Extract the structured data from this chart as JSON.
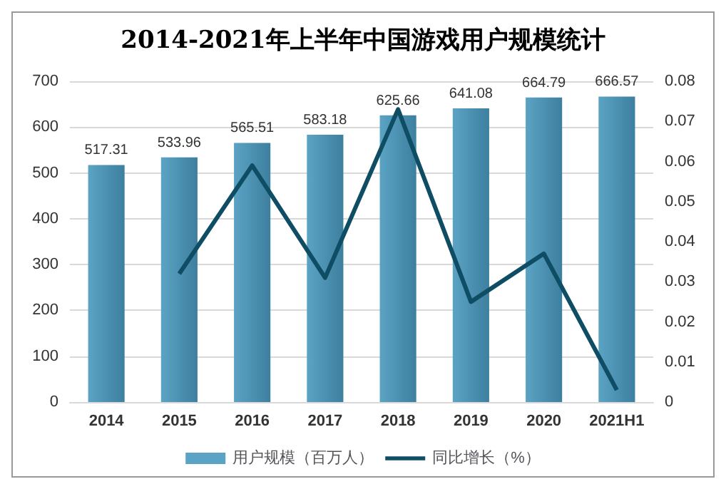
{
  "chart_data": {
    "type": "bar",
    "title": "2014-2021年上半年中国游戏用户规模统计",
    "categories": [
      "2014",
      "2015",
      "2016",
      "2017",
      "2018",
      "2019",
      "2020",
      "2021H1"
    ],
    "series": [
      {
        "name": "用户规模（百万人）",
        "color": "#5ba3c4",
        "values": [
          517.31,
          533.96,
          565.51,
          583.18,
          625.66,
          641.08,
          664.79,
          666.57
        ],
        "data_labels": true
      },
      {
        "name": "同比增长（%）",
        "type": "line",
        "axis": "y2",
        "color": "#0e4d64",
        "values": [
          null,
          0.032,
          0.059,
          0.031,
          0.073,
          0.025,
          0.037,
          0.003
        ]
      }
    ],
    "ylim": [
      0,
      700
    ],
    "yticks": [
      0,
      100,
      200,
      300,
      400,
      500,
      600,
      700
    ],
    "y2lim": [
      0,
      0.08
    ],
    "y2ticks": [
      0,
      0.01,
      0.02,
      0.03,
      0.04,
      0.05,
      0.06,
      0.07,
      0.08
    ],
    "grid": "y",
    "legend": "bottom",
    "marker": "none",
    "line_style": "solid"
  }
}
